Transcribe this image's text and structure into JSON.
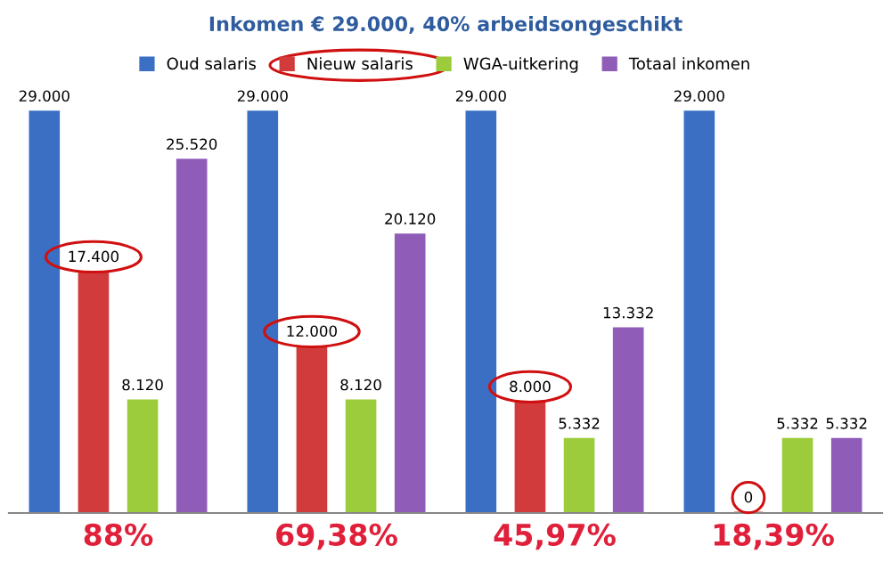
{
  "chart_data": {
    "type": "bar",
    "title": "Inkomen € 29.000, 40% arbeidsongeschikt",
    "categories": [
      "88%",
      "69,38%",
      "45,97%",
      "18,39%"
    ],
    "series": [
      {
        "name": "Oud salaris",
        "color": "#3a6fc4",
        "values": [
          29000,
          29000,
          29000,
          29000
        ],
        "value_labels": [
          "29.000",
          "29.000",
          "29.000",
          "29.000"
        ]
      },
      {
        "name": "Nieuw salaris",
        "color": "#d23b3b",
        "values": [
          17400,
          12000,
          8000,
          0
        ],
        "value_labels": [
          "17.400",
          "12.000",
          "8.000",
          "0"
        ]
      },
      {
        "name": "WGA-uitkering",
        "color": "#9ccc3c",
        "values": [
          8120,
          8120,
          5332,
          5332
        ],
        "value_labels": [
          "8.120",
          "8.120",
          "5.332",
          "5.332"
        ]
      },
      {
        "name": "Totaal inkomen",
        "color": "#8f5cb8",
        "values": [
          25520,
          20120,
          13332,
          5332
        ],
        "value_labels": [
          "25.520",
          "20.120",
          "13.332",
          "5.332"
        ]
      }
    ],
    "legend": "top",
    "grid": false,
    "tick_labels": "x"
  }
}
